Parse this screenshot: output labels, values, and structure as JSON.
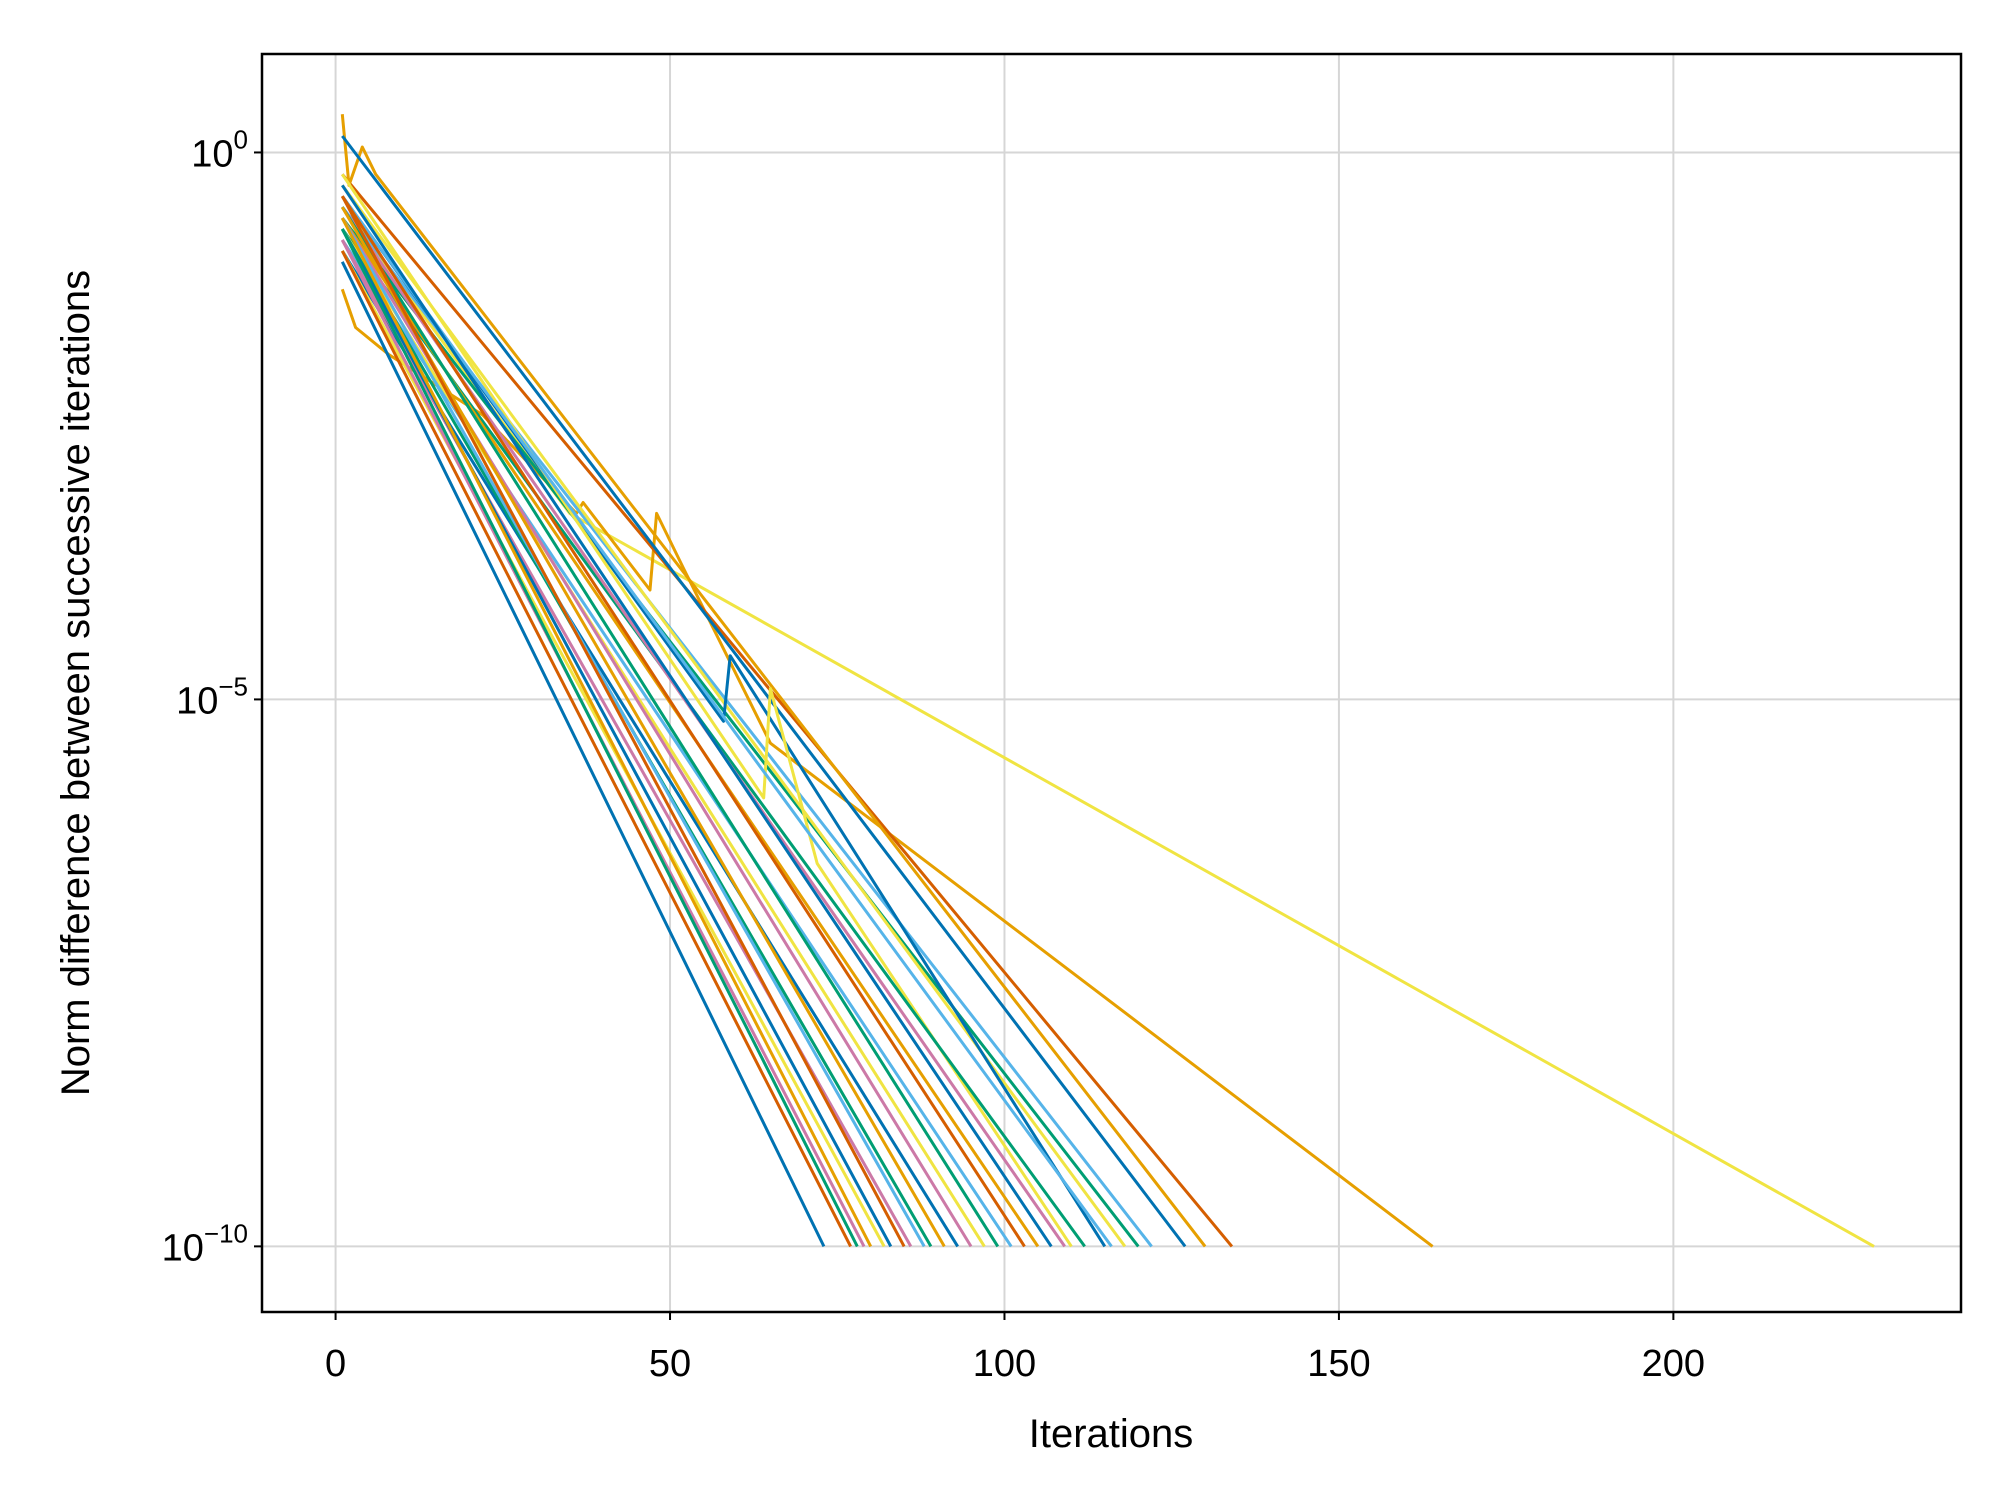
{
  "chart_data": {
    "type": "line",
    "title": "",
    "xlabel": "Iterations",
    "ylabel": "Norm difference between successive iterations",
    "xlim": [
      -11,
      243
    ],
    "ylim_log10": [
      -10.6,
      0.9
    ],
    "yscale": "log",
    "grid": true,
    "legend": "none",
    "x_ticks": [
      {
        "value": 0,
        "label": "0"
      },
      {
        "value": 50,
        "label": "50"
      },
      {
        "value": 100,
        "label": "100"
      },
      {
        "value": 150,
        "label": "150"
      },
      {
        "value": 200,
        "label": "200"
      }
    ],
    "y_ticks": [
      {
        "value_log10": 0,
        "base": "10",
        "exp": "0"
      },
      {
        "value_log10": -5,
        "base": "10",
        "exp": "−5"
      },
      {
        "value_log10": -10,
        "base": "10",
        "exp": "−10"
      }
    ],
    "palette": [
      "#0072b2",
      "#e69f00",
      "#009e73",
      "#cc79a7",
      "#56b4e9",
      "#f0e442",
      "#d55e00"
    ],
    "series": [
      {
        "color": "#f0e442",
        "points": [
          [
            1,
            -0.4
          ],
          [
            6,
            -0.9
          ],
          [
            35,
            -3.3
          ],
          [
            230,
            -10
          ]
        ]
      },
      {
        "color": "#e69f00",
        "points": [
          [
            1,
            -1.25
          ],
          [
            3,
            -1.6
          ],
          [
            8,
            -1.85
          ],
          [
            22,
            -2.4
          ],
          [
            36,
            -3.3
          ],
          [
            37,
            -3.2
          ],
          [
            47,
            -4.0
          ],
          [
            48,
            -3.3
          ],
          [
            52,
            -3.8
          ],
          [
            65,
            -5.4
          ],
          [
            164,
            -10
          ]
        ]
      },
      {
        "color": "#d55e00",
        "points": [
          [
            1,
            -0.2
          ],
          [
            134,
            -10
          ]
        ]
      },
      {
        "color": "#e69f00",
        "points": [
          [
            1,
            0.35
          ],
          [
            2,
            -0.3
          ],
          [
            4,
            0.05
          ],
          [
            6,
            -0.2
          ],
          [
            130,
            -10
          ]
        ]
      },
      {
        "color": "#0072b2",
        "points": [
          [
            1,
            0.15
          ],
          [
            127,
            -10
          ]
        ]
      },
      {
        "color": "#56b4e9",
        "points": [
          [
            1,
            -0.5
          ],
          [
            122,
            -10
          ]
        ]
      },
      {
        "color": "#009e73",
        "points": [
          [
            1,
            -0.6
          ],
          [
            120,
            -10
          ]
        ]
      },
      {
        "color": "#f0e442",
        "points": [
          [
            1,
            -0.3
          ],
          [
            118,
            -10
          ]
        ]
      },
      {
        "color": "#0072b2",
        "points": [
          [
            1,
            -0.4
          ],
          [
            58,
            -5.2
          ],
          [
            59,
            -4.6
          ],
          [
            115,
            -10
          ]
        ]
      },
      {
        "color": "#f0e442",
        "points": [
          [
            1,
            -0.2
          ],
          [
            64,
            -5.9
          ],
          [
            65,
            -4.9
          ],
          [
            72,
            -6.5
          ],
          [
            110,
            -10
          ]
        ]
      },
      {
        "color": "#56b4e9",
        "points": [
          [
            1,
            -0.4
          ],
          [
            116,
            -10
          ]
        ]
      },
      {
        "color": "#009e73",
        "points": [
          [
            1,
            -0.7
          ],
          [
            112,
            -10
          ]
        ]
      },
      {
        "color": "#cc79a7",
        "points": [
          [
            1,
            -0.5
          ],
          [
            109,
            -10
          ]
        ]
      },
      {
        "color": "#0072b2",
        "points": [
          [
            1,
            -0.3
          ],
          [
            107,
            -10
          ]
        ]
      },
      {
        "color": "#e69f00",
        "points": [
          [
            1,
            -0.6
          ],
          [
            105,
            -10
          ]
        ]
      },
      {
        "color": "#d55e00",
        "points": [
          [
            1,
            -0.4
          ],
          [
            103,
            -10
          ]
        ]
      },
      {
        "color": "#56b4e9",
        "points": [
          [
            1,
            -0.8
          ],
          [
            101,
            -10
          ]
        ]
      },
      {
        "color": "#009e73",
        "points": [
          [
            1,
            -0.5
          ],
          [
            99,
            -10
          ]
        ]
      },
      {
        "color": "#f0e442",
        "points": [
          [
            1,
            -0.7
          ],
          [
            97,
            -10
          ]
        ]
      },
      {
        "color": "#cc79a7",
        "points": [
          [
            1,
            -0.6
          ],
          [
            95,
            -10
          ]
        ]
      },
      {
        "color": "#0072b2",
        "points": [
          [
            1,
            -0.9
          ],
          [
            93,
            -10
          ]
        ]
      },
      {
        "color": "#e69f00",
        "points": [
          [
            1,
            -0.5
          ],
          [
            91,
            -10
          ]
        ]
      },
      {
        "color": "#009e73",
        "points": [
          [
            1,
            -0.7
          ],
          [
            89,
            -10
          ]
        ]
      },
      {
        "color": "#56b4e9",
        "points": [
          [
            1,
            -0.6
          ],
          [
            88,
            -10
          ]
        ]
      },
      {
        "color": "#cc79a7",
        "points": [
          [
            1,
            -0.8
          ],
          [
            86,
            -10
          ]
        ]
      },
      {
        "color": "#d55e00",
        "points": [
          [
            1,
            -0.4
          ],
          [
            85,
            -10
          ]
        ]
      },
      {
        "color": "#0072b2",
        "points": [
          [
            1,
            -0.7
          ],
          [
            83,
            -10
          ]
        ]
      },
      {
        "color": "#f0e442",
        "points": [
          [
            1,
            -0.9
          ],
          [
            82,
            -10
          ]
        ]
      },
      {
        "color": "#e69f00",
        "points": [
          [
            1,
            -0.6
          ],
          [
            80,
            -10
          ]
        ]
      },
      {
        "color": "#cc79a7",
        "points": [
          [
            1,
            -0.8
          ],
          [
            79,
            -10
          ]
        ]
      },
      {
        "color": "#009e73",
        "points": [
          [
            1,
            -0.7
          ],
          [
            78,
            -10
          ]
        ]
      },
      {
        "color": "#d55e00",
        "points": [
          [
            1,
            -0.9
          ],
          [
            77,
            -10
          ]
        ]
      },
      {
        "color": "#0072b2",
        "points": [
          [
            1,
            -1.0
          ],
          [
            73,
            -10
          ]
        ]
      }
    ]
  }
}
